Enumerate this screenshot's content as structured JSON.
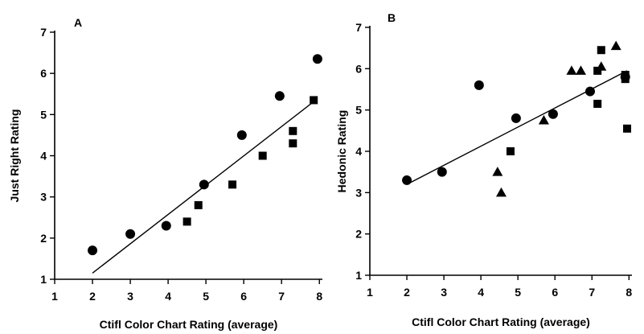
{
  "chart_data": [
    {
      "panel_label": "A",
      "type": "scatter",
      "xlabel": "Ctifl Color Chart Rating (average)",
      "ylabel": "Just Right Rating",
      "xlim": [
        1,
        8
      ],
      "ylim": [
        1,
        7
      ],
      "xticks": [
        "1",
        "2",
        "3",
        "4",
        "5",
        "6",
        "7",
        "8"
      ],
      "yticks": [
        "1",
        "2",
        "3",
        "4",
        "5",
        "6",
        "7"
      ],
      "grid": false,
      "series": [
        {
          "marker": "circle",
          "points": [
            [
              2.0,
              1.7
            ],
            [
              3.0,
              2.1
            ],
            [
              3.95,
              2.3
            ],
            [
              4.95,
              3.3
            ],
            [
              5.95,
              4.5
            ],
            [
              6.95,
              5.45
            ],
            [
              7.95,
              6.35
            ]
          ]
        },
        {
          "marker": "square",
          "points": [
            [
              4.5,
              2.4
            ],
            [
              4.8,
              2.8
            ],
            [
              5.7,
              3.3
            ],
            [
              6.5,
              4.0
            ],
            [
              7.3,
              4.3
            ],
            [
              7.3,
              4.6
            ],
            [
              7.85,
              5.35
            ]
          ]
        }
      ],
      "fit_line": [
        [
          2.0,
          1.15
        ],
        [
          7.9,
          5.35
        ]
      ]
    },
    {
      "panel_label": "B",
      "type": "scatter",
      "xlabel": "Ctifl Color Chart Rating (average)",
      "ylabel": "Hedonic Rating",
      "xlim": [
        1,
        8
      ],
      "ylim": [
        1,
        7
      ],
      "xticks": [
        "1",
        "2",
        "3",
        "4",
        "5",
        "6",
        "7",
        "8"
      ],
      "yticks": [
        "1",
        "2",
        "3",
        "4",
        "5",
        "6",
        "7"
      ],
      "grid": false,
      "series": [
        {
          "marker": "circle",
          "points": [
            [
              2.0,
              3.3
            ],
            [
              2.95,
              3.5
            ],
            [
              3.95,
              5.6
            ],
            [
              4.95,
              4.8
            ],
            [
              5.95,
              4.9
            ],
            [
              6.95,
              5.45
            ],
            [
              7.9,
              5.8
            ]
          ]
        },
        {
          "marker": "square",
          "points": [
            [
              4.8,
              4.0
            ],
            [
              7.15,
              5.15
            ],
            [
              7.15,
              5.95
            ],
            [
              7.25,
              6.45
            ],
            [
              7.9,
              5.85
            ],
            [
              7.9,
              5.75
            ],
            [
              7.95,
              4.55
            ]
          ]
        },
        {
          "marker": "triangle",
          "points": [
            [
              4.45,
              3.5
            ],
            [
              4.55,
              3.0
            ],
            [
              5.7,
              4.75
            ],
            [
              6.45,
              5.95
            ],
            [
              6.7,
              5.95
            ],
            [
              7.25,
              6.05
            ],
            [
              7.65,
              6.55
            ]
          ]
        }
      ],
      "fit_line": [
        [
          2.0,
          3.2
        ],
        [
          7.95,
          5.95
        ]
      ]
    }
  ]
}
